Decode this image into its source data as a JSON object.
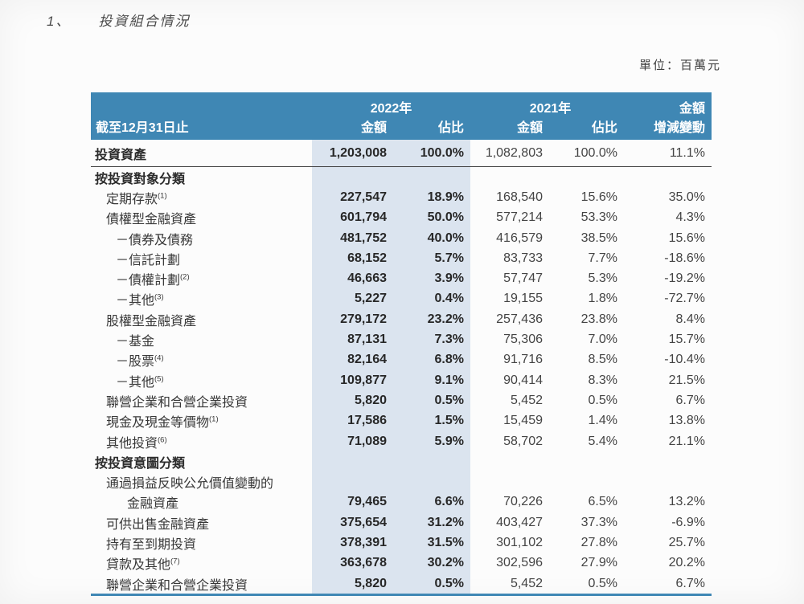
{
  "page": {
    "section_number": "1、",
    "section_title": "投資組合情況",
    "unit_label": "單位：百萬元"
  },
  "colors": {
    "header_bg": "#3f87b4",
    "highlight_bg": "#dbe4ef",
    "bottom_rule": "#3f87b4",
    "divider_line": "#3f3f3f"
  },
  "table": {
    "header": {
      "as_of": "截至12月31日止",
      "group_2022": "2022年",
      "group_2021": "2021年",
      "change_line1": "金額",
      "change_line2": "增減變動",
      "col_amount_2022": "金額",
      "col_share_2022": "佔比",
      "col_amount_2021": "金額",
      "col_share_2021": "佔比"
    },
    "rows": [
      {
        "label": "投資資產",
        "indent": 0,
        "bold": true,
        "tall": true,
        "divider": true,
        "values": [
          "1,203,008",
          "100.0%",
          "1,082,803",
          "100.0%",
          "11.1%"
        ]
      },
      {
        "label": "按投資對象分類",
        "indent": 0,
        "bold": true,
        "values": null
      },
      {
        "label": "定期存款",
        "sup": "(1)",
        "indent": 1,
        "values": [
          "227,547",
          "18.9%",
          "168,540",
          "15.6%",
          "35.0%"
        ]
      },
      {
        "label": "債權型金融資產",
        "indent": 1,
        "values": [
          "601,794",
          "50.0%",
          "577,214",
          "53.3%",
          "4.3%"
        ]
      },
      {
        "label": "－債券及債務",
        "indent": 2,
        "values": [
          "481,752",
          "40.0%",
          "416,579",
          "38.5%",
          "15.6%"
        ]
      },
      {
        "label": "－信託計劃",
        "indent": 2,
        "values": [
          "68,152",
          "5.7%",
          "83,733",
          "7.7%",
          "-18.6%"
        ]
      },
      {
        "label": "－債權計劃",
        "sup": "(2)",
        "indent": 2,
        "values": [
          "46,663",
          "3.9%",
          "57,747",
          "5.3%",
          "-19.2%"
        ]
      },
      {
        "label": "－其他",
        "sup": "(3)",
        "indent": 2,
        "values": [
          "5,227",
          "0.4%",
          "19,155",
          "1.8%",
          "-72.7%"
        ]
      },
      {
        "label": "股權型金融資產",
        "indent": 1,
        "values": [
          "279,172",
          "23.2%",
          "257,436",
          "23.8%",
          "8.4%"
        ]
      },
      {
        "label": "－基金",
        "indent": 2,
        "values": [
          "87,131",
          "7.3%",
          "75,306",
          "7.0%",
          "15.7%"
        ]
      },
      {
        "label": "－股票",
        "sup": "(4)",
        "indent": 2,
        "values": [
          "82,164",
          "6.8%",
          "91,716",
          "8.5%",
          "-10.4%"
        ]
      },
      {
        "label": "－其他",
        "sup": "(5)",
        "indent": 2,
        "values": [
          "109,877",
          "9.1%",
          "90,414",
          "8.3%",
          "21.5%"
        ]
      },
      {
        "label": "聯營企業和合營企業投資",
        "indent": 1,
        "values": [
          "5,820",
          "0.5%",
          "5,452",
          "0.5%",
          "6.7%"
        ]
      },
      {
        "label": "現金及現金等價物",
        "sup": "(1)",
        "indent": 1,
        "values": [
          "17,586",
          "1.5%",
          "15,459",
          "1.4%",
          "13.8%"
        ]
      },
      {
        "label": "其他投資",
        "sup": "(6)",
        "indent": 1,
        "values": [
          "71,089",
          "5.9%",
          "58,702",
          "5.4%",
          "21.1%"
        ]
      },
      {
        "label": "按投資意圖分類",
        "indent": 0,
        "bold": true,
        "values": null
      },
      {
        "label": "通過損益反映公允價值變動的",
        "indent": 1,
        "values": null
      },
      {
        "label": "金融資產",
        "indent": 3,
        "values": [
          "79,465",
          "6.6%",
          "70,226",
          "6.5%",
          "13.2%"
        ]
      },
      {
        "label": "可供出售金融資產",
        "indent": 1,
        "values": [
          "375,654",
          "31.2%",
          "403,427",
          "37.3%",
          "-6.9%"
        ]
      },
      {
        "label": "持有至到期投資",
        "indent": 1,
        "values": [
          "378,391",
          "31.5%",
          "301,102",
          "27.8%",
          "25.7%"
        ]
      },
      {
        "label": "貸款及其他",
        "sup": "(7)",
        "indent": 1,
        "values": [
          "363,678",
          "30.2%",
          "302,596",
          "27.9%",
          "20.2%"
        ]
      },
      {
        "label": "聯營企業和合營企業投資",
        "indent": 1,
        "values": [
          "5,820",
          "0.5%",
          "5,452",
          "0.5%",
          "6.7%"
        ]
      }
    ]
  }
}
